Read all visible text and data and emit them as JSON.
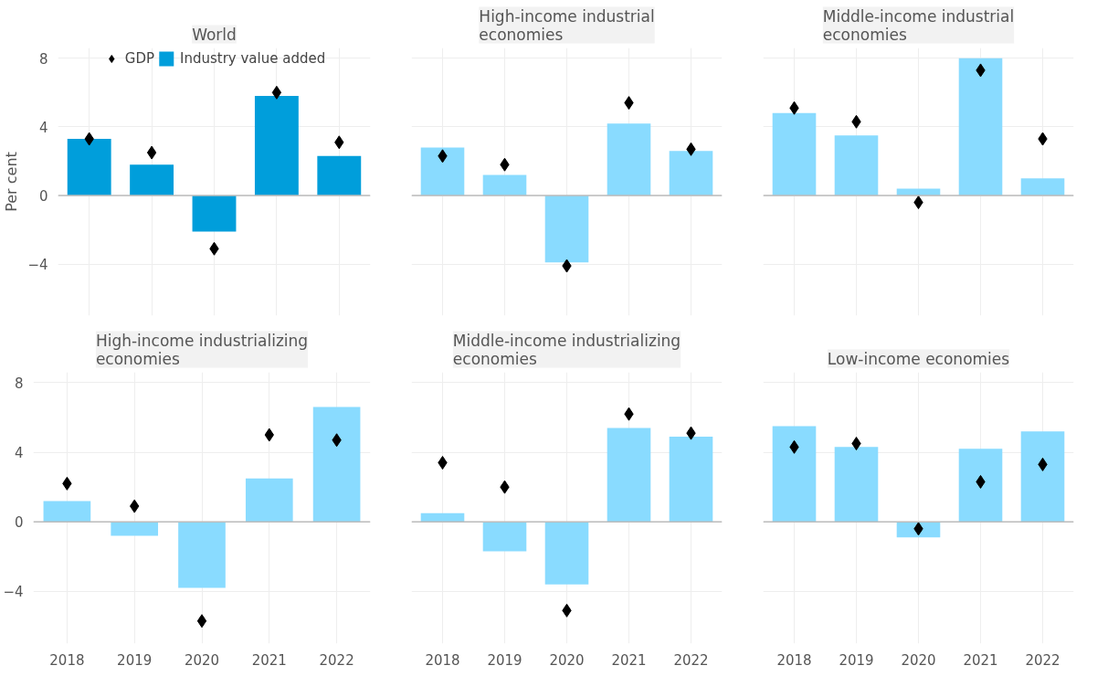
{
  "chart_data": [
    {
      "type": "bar",
      "title": "World",
      "ylabel": "Per cent",
      "categories": [
        "2018",
        "2019",
        "2020",
        "2021",
        "2022"
      ],
      "series": [
        {
          "name": "GDP",
          "type": "scatter",
          "color": "#000000",
          "values": [
            3.3,
            2.5,
            -3.1,
            6.0,
            3.1
          ]
        },
        {
          "name": "Industry value added",
          "color": "#009edb",
          "values": [
            3.3,
            1.8,
            -2.1,
            5.8,
            2.3
          ]
        }
      ],
      "ylim": [
        -7,
        8.6
      ],
      "yticks": [
        -4,
        0,
        4,
        8
      ],
      "grid": true,
      "marker": "diamond",
      "legend": "top",
      "tick_labels": "y",
      "ref_lines": [
        {
          "axis": "y",
          "value": 0,
          "color": "#bbbbbb"
        }
      ]
    },
    {
      "type": "bar",
      "title": "High-income industrial economies",
      "categories": [
        "2018",
        "2019",
        "2020",
        "2021",
        "2022"
      ],
      "series": [
        {
          "type": "scatter",
          "color": "#000000",
          "values": [
            2.3,
            1.8,
            -4.1,
            5.4,
            2.7
          ]
        },
        {
          "color": "#89dbff",
          "values": [
            2.8,
            1.2,
            -3.9,
            4.2,
            2.6
          ]
        }
      ],
      "ylim": [
        -7,
        8.6
      ],
      "yticks": [
        -4,
        0,
        4,
        8
      ],
      "grid": true,
      "marker": "diamond",
      "tick_labels": false,
      "ref_lines": [
        {
          "axis": "y",
          "value": 0,
          "color": "#bbbbbb"
        }
      ]
    },
    {
      "type": "bar",
      "title": "Middle-income industrial economies",
      "categories": [
        "2018",
        "2019",
        "2020",
        "2021",
        "2022"
      ],
      "series": [
        {
          "type": "scatter",
          "color": "#000000",
          "values": [
            5.1,
            4.3,
            -0.4,
            7.3,
            3.3
          ]
        },
        {
          "color": "#89dbff",
          "values": [
            4.8,
            3.5,
            0.4,
            8.0,
            1.0
          ]
        }
      ],
      "ylim": [
        -7,
        8.6
      ],
      "yticks": [
        -4,
        0,
        4,
        8
      ],
      "grid": true,
      "marker": "diamond",
      "tick_labels": false,
      "ref_lines": [
        {
          "axis": "y",
          "value": 0,
          "color": "#bbbbbb"
        }
      ]
    },
    {
      "type": "bar",
      "title": "High-income industrializing economies",
      "categories": [
        "2018",
        "2019",
        "2020",
        "2021",
        "2022"
      ],
      "series": [
        {
          "type": "scatter",
          "color": "#000000",
          "values": [
            2.2,
            0.9,
            -5.7,
            5.0,
            4.7
          ]
        },
        {
          "color": "#89dbff",
          "values": [
            1.2,
            -0.8,
            -3.8,
            2.5,
            6.6
          ]
        }
      ],
      "ylim": [
        -7,
        8.6
      ],
      "yticks": [
        -4,
        0,
        4,
        8
      ],
      "grid": true,
      "marker": "diamond",
      "ref_lines": [
        {
          "axis": "y",
          "value": 0,
          "color": "#bbbbbb"
        }
      ]
    },
    {
      "type": "bar",
      "title": "Middle-income industrializing economies",
      "categories": [
        "2018",
        "2019",
        "2020",
        "2021",
        "2022"
      ],
      "series": [
        {
          "type": "scatter",
          "color": "#000000",
          "values": [
            3.4,
            2.0,
            -5.1,
            6.2,
            5.1
          ]
        },
        {
          "color": "#89dbff",
          "values": [
            0.5,
            -1.7,
            -3.6,
            5.4,
            4.9
          ]
        }
      ],
      "ylim": [
        -7,
        8.6
      ],
      "yticks": [
        -4,
        0,
        4,
        8
      ],
      "grid": true,
      "marker": "diamond",
      "tick_labels": "x",
      "ref_lines": [
        {
          "axis": "y",
          "value": 0,
          "color": "#bbbbbb"
        }
      ]
    },
    {
      "type": "bar",
      "title": "Low-income economies",
      "categories": [
        "2018",
        "2019",
        "2020",
        "2021",
        "2022"
      ],
      "series": [
        {
          "type": "scatter",
          "color": "#000000",
          "values": [
            4.3,
            4.5,
            -0.4,
            2.3,
            3.3
          ]
        },
        {
          "color": "#89dbff",
          "values": [
            5.5,
            4.3,
            -0.9,
            4.2,
            5.2
          ]
        }
      ],
      "ylim": [
        -7,
        8.6
      ],
      "yticks": [
        -4,
        0,
        4,
        8
      ],
      "grid": true,
      "marker": "diamond",
      "tick_labels": "x",
      "ref_lines": [
        {
          "axis": "y",
          "value": 0,
          "color": "#bbbbbb"
        }
      ]
    }
  ]
}
